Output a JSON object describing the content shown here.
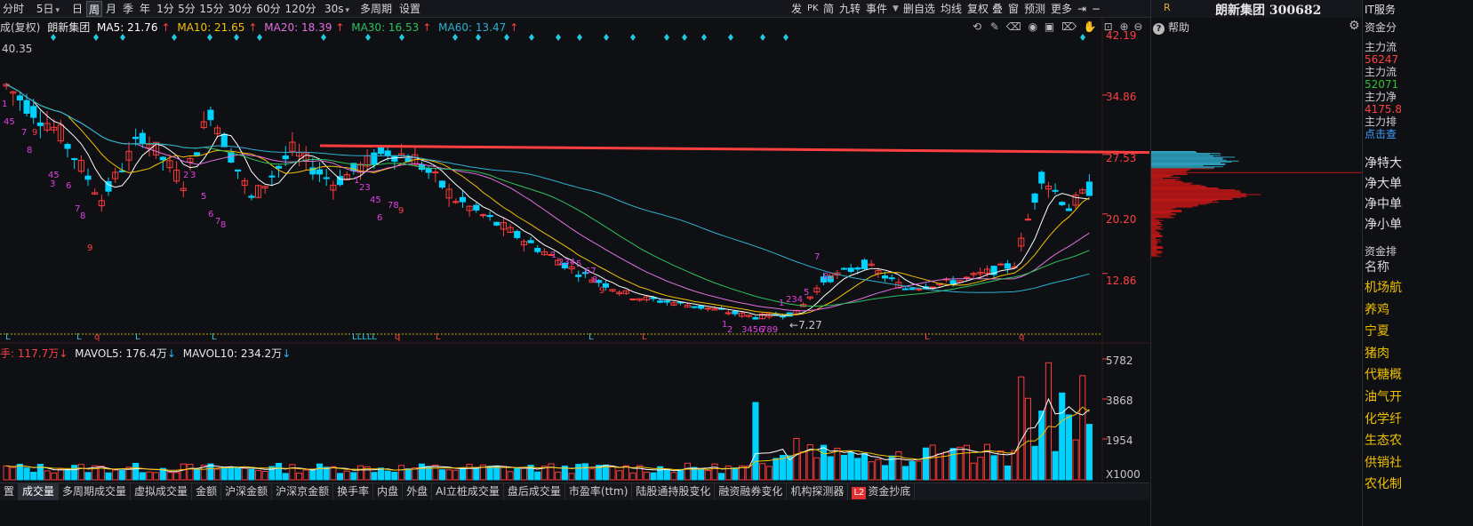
{
  "toolbar": {
    "tabs": [
      "分时",
      "5日",
      "日",
      "周",
      "月",
      "季",
      "年",
      "1分",
      "5分",
      "15分",
      "30分",
      "60分",
      "120分",
      "30s",
      "多周期",
      "设置"
    ],
    "right_items": [
      "发",
      "PK",
      "简",
      "九转",
      "事件",
      "删自选",
      "均线",
      "复权",
      "叠",
      "窗",
      "预测",
      "更多"
    ]
  },
  "legend": {
    "prefix": "成(复权)",
    "stock": "朗新集团",
    "ma5": "MA5: 21.76",
    "ma10": "MA10: 21.65",
    "ma20": "MA20: 18.39",
    "ma30": "MA30: 16.53",
    "ma60": "MA60: 13.47"
  },
  "price_axis": [
    "42.19",
    "34.86",
    "27.53",
    "20.20",
    "12.86"
  ],
  "high_price": "40.35",
  "low_price": "7.27",
  "vol_legend": {
    "vol": "手: 117.7万",
    "mavol5": "MAVOL5: 176.4万",
    "mavol10": "MAVOL10: 234.2万"
  },
  "vol_axis": [
    "5782",
    "3868",
    "1954",
    "X1000"
  ],
  "bottom_tabs": [
    "置",
    "成交量",
    "多周期成交量",
    "虚拟成交量",
    "金额",
    "沪深金额",
    "沪深京金额",
    "换手率",
    "内盘",
    "外盘",
    "AI立桩成交量",
    "盘后成交量",
    "市盈率(ttm)",
    "陆股通持股变化",
    "融资融券变化",
    "机构探测器",
    "资金抄底"
  ],
  "bottom_tab_l2": "L2",
  "right_panel": {
    "r_label": "R",
    "title": "朗新集团 300682",
    "help": "帮助"
  },
  "far_right": {
    "header": "IT服务",
    "items": [
      {
        "text": "资金分",
        "color": "#d0d0d0"
      },
      {
        "text": "主力流",
        "color": "#d0d0d0"
      },
      {
        "text": "56247",
        "color": "#ff4040"
      },
      {
        "text": "主力流",
        "color": "#d0d0d0"
      },
      {
        "text": "52071",
        "color": "#30c030"
      },
      {
        "text": "主力净",
        "color": "#d0d0d0"
      },
      {
        "text": "4175.8",
        "color": "#ff4040"
      },
      {
        "text": "主力排",
        "color": "#d0d0d0"
      },
      {
        "text": "点击查",
        "color": "#40a0ff"
      }
    ],
    "net_items": [
      "净特大",
      "净大单",
      "净中单",
      "净小单"
    ],
    "fund_rank": "资金排",
    "name_header": "名称",
    "categories": [
      "机场航",
      "养鸡",
      "宁夏",
      "猪肉",
      "代糖概",
      "油气开",
      "化学纤",
      "生态农",
      "供销社",
      "农化制"
    ]
  },
  "colors": {
    "up": "#ff3b3b",
    "down": "#00d2ff",
    "ma5": "#ffffff",
    "ma10": "#f5c000",
    "ma20": "#e070e0",
    "ma30": "#30c060",
    "ma60": "#30b0d0",
    "accent_arrow": "#ff4040"
  }
}
